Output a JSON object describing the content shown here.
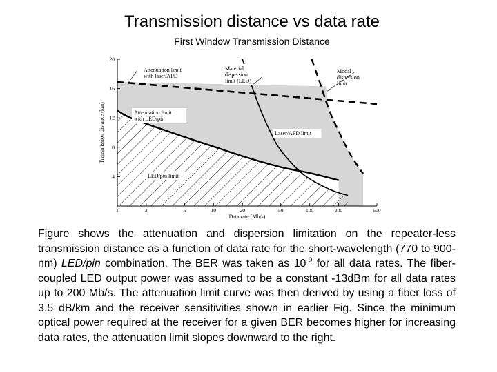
{
  "header": {
    "title": "Transmission distance vs data rate",
    "subtitle": "First Window Transmission Distance"
  },
  "chart_data": {
    "type": "line",
    "xlabel": "Data rate (Mb/s)",
    "ylabel": "Transmission distance (km)",
    "xscale": "log",
    "x_ticks": [
      1,
      2,
      5,
      10,
      20,
      50,
      100,
      200,
      500
    ],
    "y_ticks": [
      4,
      8,
      12,
      16,
      20
    ],
    "xlim": [
      1,
      500
    ],
    "ylim": [
      0,
      20
    ],
    "grid": false,
    "series": [
      {
        "name": "Attenuation limit with laser/APD",
        "style": "solid",
        "x": [
          1,
          500
        ],
        "y": [
          16.9,
          13.9
        ]
      },
      {
        "name": "Attenuation limit with LED/pin",
        "style": "solid",
        "x": [
          1,
          1.5,
          5,
          10,
          20,
          50,
          100,
          200
        ],
        "y": [
          13.0,
          11.8,
          9.4,
          8.1,
          6.8,
          5.3,
          4.5,
          3.5
        ]
      },
      {
        "name": "Material dispersion limit (LED)",
        "style": "solid",
        "x": [
          20,
          30,
          40,
          50,
          75,
          100,
          150,
          200,
          250
        ],
        "y": [
          20,
          13.5,
          9.8,
          7.6,
          5.0,
          3.7,
          2.45,
          1.8,
          1.45
        ]
      },
      {
        "name": "Modal dispersion limit",
        "style": "dashed",
        "x": [
          105,
          130,
          160,
          200,
          250,
          300,
          360
        ],
        "y": [
          20,
          16.5,
          13.0,
          10.2,
          7.6,
          5.9,
          4.4
        ]
      }
    ],
    "shaded_regions": [
      "Laser/APD limit",
      "LED/pin limit"
    ],
    "annotations": [
      {
        "lines": [
          "Attenuation limit",
          "with laser/APD"
        ]
      },
      {
        "lines": [
          "Material",
          "dispersion",
          "limit (LED)"
        ]
      },
      {
        "lines": [
          "Modal",
          "dispersion",
          "limit"
        ]
      },
      {
        "lines": [
          "Attenuation limit",
          "with LED/pin"
        ]
      },
      {
        "lines": [
          "Laser/APD limit"
        ]
      },
      {
        "lines": [
          "LED/pin limit"
        ]
      }
    ],
    "colors": {
      "laser_region_fill": "#d6d6d6",
      "ink": "#000000"
    }
  },
  "body": {
    "seg1": "Figure shows the attenuation and dispersion limitation on the repeater-less transmission distance as a function of data rate for the short-wavelength (770 to 900-nm) ",
    "seg2": "LED/pin",
    "seg3": " combination. The BER was taken as 10",
    "seg4": "-9",
    "seg5": " for all data rates. The fiber-coupled LED output power was assumed to be a constant -13dBm for all data rates up to 200 Mb/s. The attenuation limit curve was then derived by using a fiber loss of 3.5 dB/km and the receiver sensitivities shown in earlier Fig. Since the minimum optical power required at the receiver for a given BER becomes higher for increasing data rates, the attenuation limit slopes downward to the right."
  }
}
